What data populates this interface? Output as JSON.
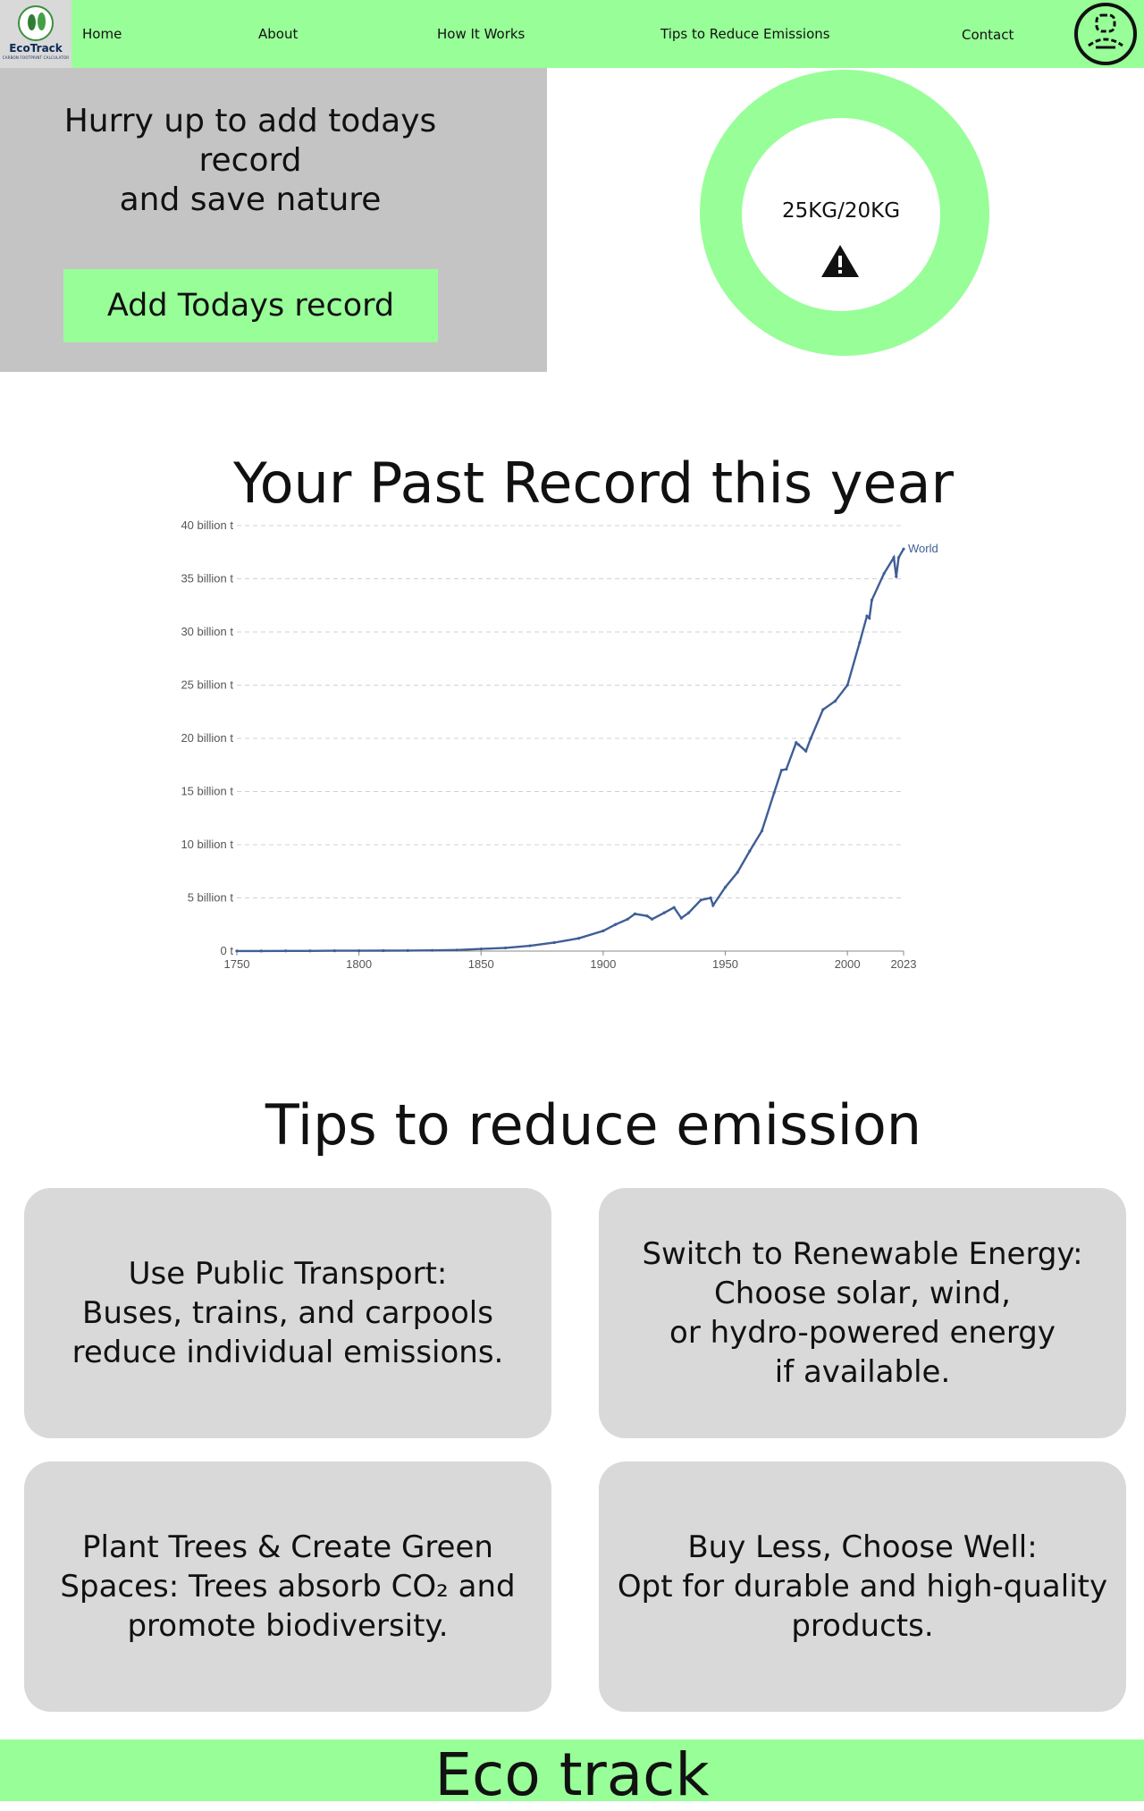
{
  "brand": {
    "name": "EcoTrack",
    "tagline": "CARBON FOOTPRINT CALCULATOR",
    "accent": "#98fe98"
  },
  "nav": {
    "items": [
      {
        "label": "Home"
      },
      {
        "label": "About"
      },
      {
        "label": "How It Works"
      },
      {
        "label": "Tips to Reduce Emissions"
      },
      {
        "label": "Contact"
      }
    ],
    "avatar_icon": "user-avatar-icon"
  },
  "hero": {
    "message": "Hurry up to add todays record\nand save nature",
    "button_label": "Add Todays record",
    "gauge_text": "25KG/20KG",
    "gauge_icon": "warning-icon"
  },
  "past": {
    "title": "Your Past Record this year"
  },
  "chart_data": {
    "type": "line",
    "title": "",
    "xlabel": "",
    "ylabel": "",
    "xlim": [
      1750,
      2023
    ],
    "ylim": [
      0,
      40
    ],
    "y_ticks": [
      "0 t",
      "5 billion t",
      "10 billion t",
      "15 billion t",
      "20 billion t",
      "25 billion t",
      "30 billion t",
      "35 billion t",
      "40 billion t"
    ],
    "x_ticks": [
      "1750",
      "1800",
      "1850",
      "1900",
      "1950",
      "2000",
      "2023"
    ],
    "grid": true,
    "series": [
      {
        "name": "World",
        "color": "#3f5e96",
        "x": [
          1750,
          1760,
          1770,
          1780,
          1790,
          1800,
          1810,
          1820,
          1830,
          1840,
          1850,
          1860,
          1870,
          1880,
          1890,
          1900,
          1905,
          1910,
          1913,
          1918,
          1920,
          1925,
          1929,
          1932,
          1935,
          1940,
          1944,
          1945,
          1950,
          1955,
          1960,
          1965,
          1970,
          1973,
          1975,
          1979,
          1980,
          1983,
          1985,
          1990,
          1995,
          2000,
          2005,
          2008,
          2009,
          2010,
          2015,
          2019,
          2020,
          2021,
          2023
        ],
        "values": [
          0.01,
          0.01,
          0.02,
          0.02,
          0.03,
          0.03,
          0.04,
          0.05,
          0.07,
          0.1,
          0.2,
          0.3,
          0.5,
          0.8,
          1.2,
          1.9,
          2.5,
          3.0,
          3.5,
          3.3,
          3.0,
          3.6,
          4.1,
          3.1,
          3.6,
          4.8,
          5.0,
          4.3,
          6.0,
          7.4,
          9.4,
          11.3,
          14.9,
          17.0,
          17.1,
          19.6,
          19.4,
          18.8,
          20.0,
          22.7,
          23.5,
          25.0,
          29.0,
          31.5,
          31.3,
          33.0,
          35.5,
          37.0,
          35.2,
          37.0,
          37.8
        ]
      }
    ]
  },
  "tips": {
    "title": "Tips to reduce emission",
    "items": [
      {
        "text": "Use Public Transport:\nBuses, trains, and carpools\nreduce individual emissions."
      },
      {
        "text": "Switch to Renewable Energy:\nChoose solar, wind,\nor hydro-powered energy\nif available."
      },
      {
        "text": "Plant Trees & Create Green\nSpaces: Trees absorb CO₂ and\npromote biodiversity."
      },
      {
        "text": "Buy Less, Choose Well:\nOpt for durable and high-quality\nproducts."
      }
    ]
  },
  "footer": {
    "title": "Eco track"
  }
}
